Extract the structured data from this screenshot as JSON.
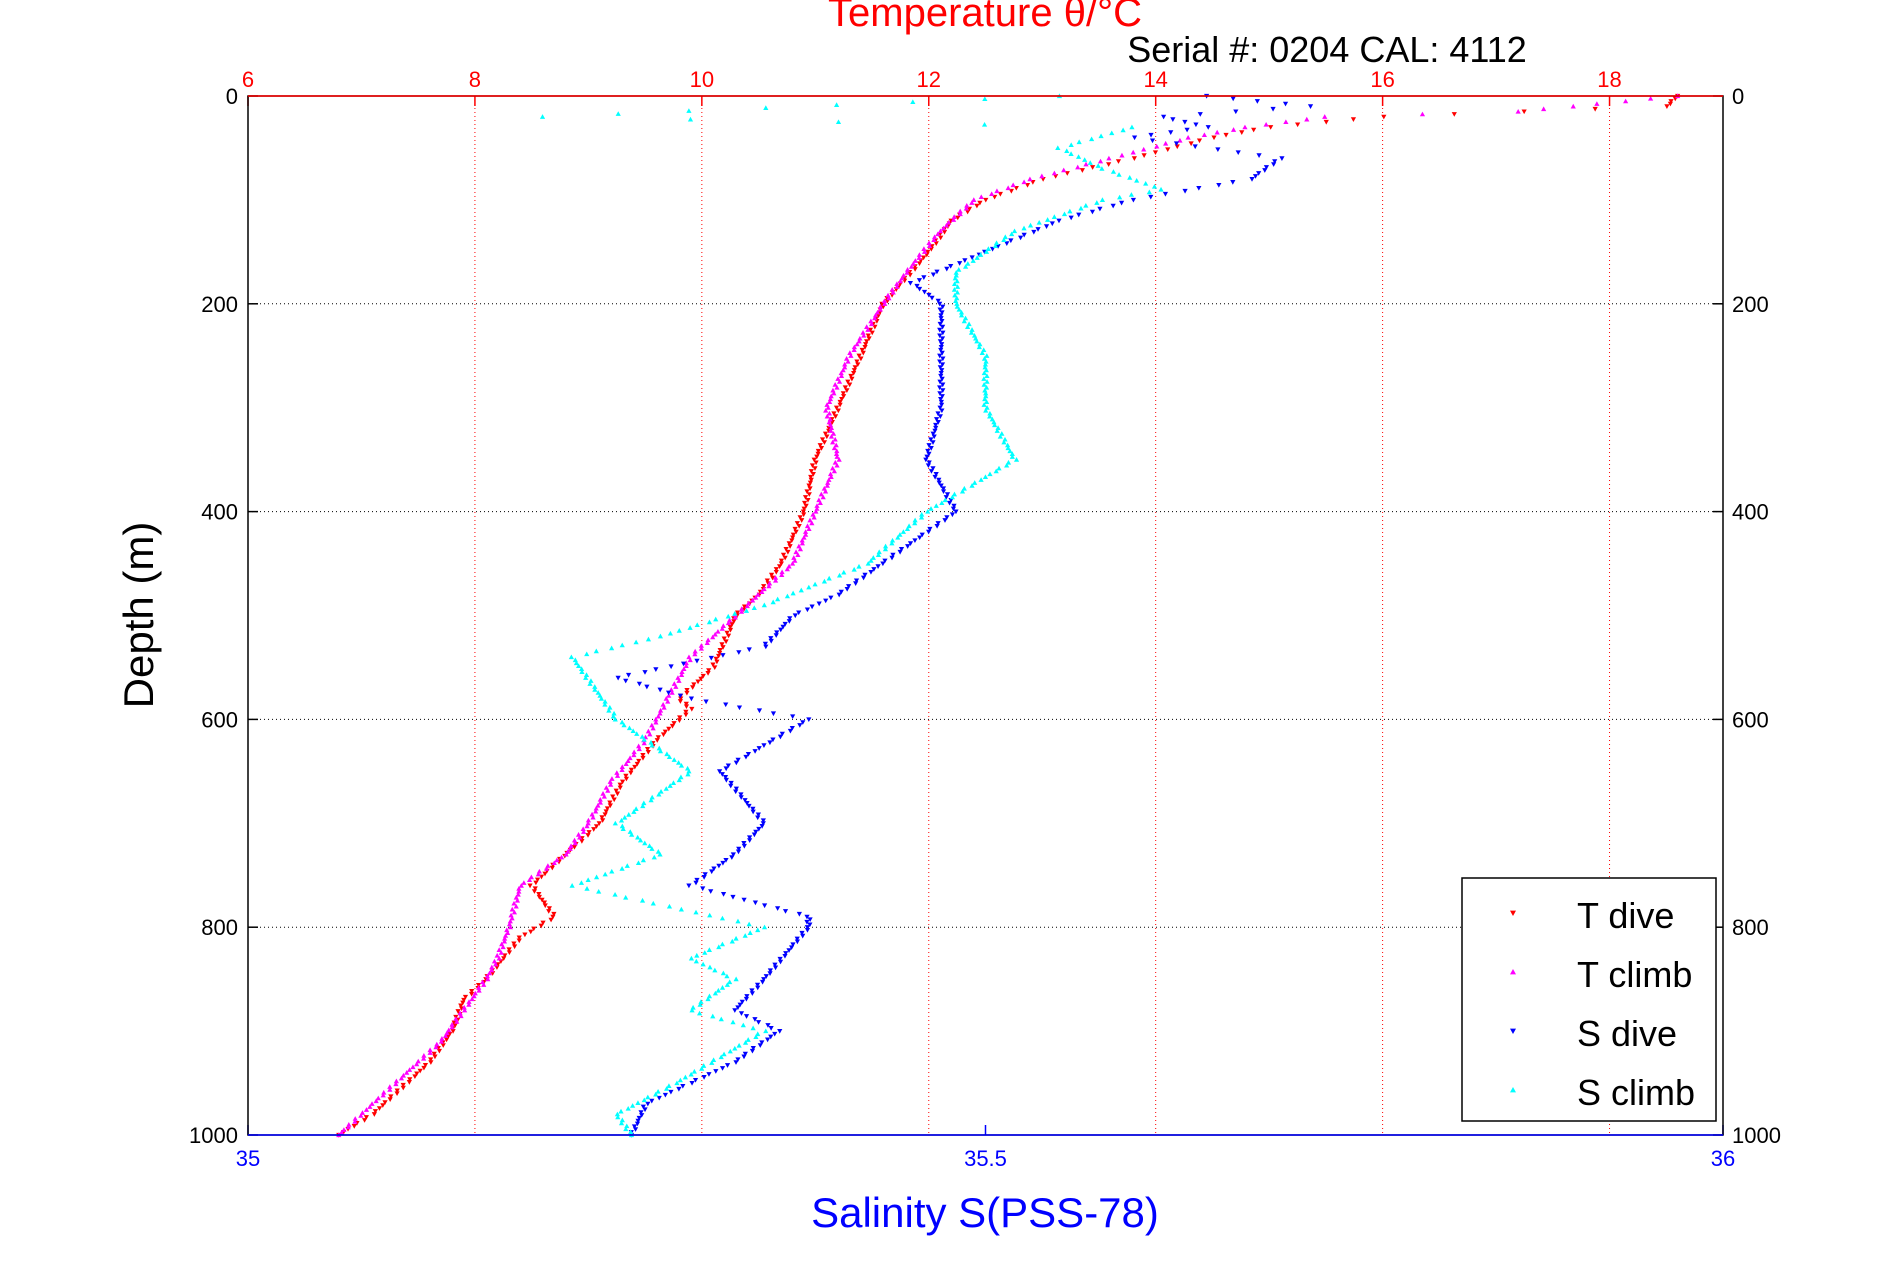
{
  "chart_data": {
    "type": "scatter",
    "title": "Temperature θ/°C",
    "subtitle": "Serial #: 0204  CAL: 4112",
    "ylabel": "Depth (m)",
    "xlabel": "Salinity S(PSS-78)",
    "ylim": [
      1000,
      0
    ],
    "temperature_axis": {
      "range": [
        6,
        19
      ],
      "ticks": [
        6,
        8,
        10,
        12,
        14,
        16,
        18
      ]
    },
    "salinity_axis": {
      "range": [
        35,
        36
      ],
      "ticks": [
        35,
        35.5,
        36
      ],
      "tick_labels": [
        "35",
        "35.5",
        "36"
      ]
    },
    "depth_ticks": [
      0,
      200,
      400,
      600,
      800,
      1000
    ],
    "grid": true,
    "legend_position": "bottom-right",
    "colors": {
      "temperature_axis": "#ff0000",
      "salinity_axis": "#0000ff",
      "t_dive": "#ff0000",
      "t_climb": "#ff00ff",
      "s_dive": "#0000ff",
      "s_climb": "#00ffff"
    },
    "series": [
      {
        "name": "T dive",
        "axis": "temperature",
        "marker": "down-triangle",
        "color": "#ff0000",
        "points": [
          [
            18.6,
            0
          ],
          [
            18.5,
            10
          ],
          [
            16.0,
            20
          ],
          [
            15.0,
            30
          ],
          [
            14.5,
            40
          ],
          [
            13.8,
            60
          ],
          [
            13.0,
            80
          ],
          [
            12.5,
            100
          ],
          [
            12.2,
            120
          ],
          [
            12.0,
            150
          ],
          [
            11.6,
            200
          ],
          [
            11.4,
            250
          ],
          [
            11.2,
            300
          ],
          [
            11.0,
            350
          ],
          [
            10.9,
            400
          ],
          [
            10.7,
            450
          ],
          [
            10.5,
            480
          ],
          [
            10.3,
            500
          ],
          [
            10.1,
            550
          ],
          [
            9.8,
            580
          ],
          [
            9.9,
            590
          ],
          [
            9.6,
            620
          ],
          [
            9.3,
            660
          ],
          [
            9.1,
            700
          ],
          [
            8.9,
            720
          ],
          [
            8.7,
            740
          ],
          [
            8.5,
            760
          ],
          [
            8.7,
            790
          ],
          [
            8.4,
            810
          ],
          [
            8.1,
            850
          ],
          [
            7.9,
            870
          ],
          [
            7.8,
            900
          ],
          [
            7.6,
            930
          ],
          [
            7.3,
            960
          ],
          [
            7.1,
            980
          ],
          [
            6.8,
            1000
          ]
        ]
      },
      {
        "name": "T climb",
        "axis": "temperature",
        "marker": "up-triangle",
        "color": "#ff00ff",
        "points": [
          [
            18.6,
            0
          ],
          [
            17.2,
            15
          ],
          [
            15.5,
            20
          ],
          [
            14.8,
            30
          ],
          [
            14.3,
            40
          ],
          [
            13.6,
            60
          ],
          [
            12.9,
            80
          ],
          [
            12.4,
            100
          ],
          [
            12.1,
            130
          ],
          [
            11.8,
            170
          ],
          [
            11.6,
            200
          ],
          [
            11.3,
            250
          ],
          [
            11.1,
            300
          ],
          [
            11.2,
            350
          ],
          [
            11.0,
            400
          ],
          [
            10.8,
            450
          ],
          [
            10.5,
            480
          ],
          [
            10.2,
            510
          ],
          [
            9.9,
            540
          ],
          [
            9.7,
            580
          ],
          [
            9.5,
            620
          ],
          [
            9.2,
            660
          ],
          [
            9.0,
            700
          ],
          [
            8.8,
            730
          ],
          [
            8.4,
            760
          ],
          [
            8.3,
            800
          ],
          [
            8.2,
            830
          ],
          [
            8.1,
            850
          ],
          [
            7.9,
            880
          ],
          [
            7.7,
            910
          ],
          [
            7.4,
            940
          ],
          [
            7.1,
            970
          ],
          [
            6.9,
            990
          ],
          [
            6.8,
            1000
          ]
        ]
      },
      {
        "name": "S dive",
        "axis": "salinity",
        "marker": "down-triangle",
        "color": "#0000ff",
        "points": [
          [
            35.65,
            0
          ],
          [
            35.72,
            10
          ],
          [
            35.62,
            20
          ],
          [
            35.65,
            30
          ],
          [
            35.6,
            40
          ],
          [
            35.7,
            60
          ],
          [
            35.68,
            80
          ],
          [
            35.6,
            100
          ],
          [
            35.55,
            120
          ],
          [
            35.5,
            150
          ],
          [
            35.45,
            180
          ],
          [
            35.47,
            200
          ],
          [
            35.47,
            250
          ],
          [
            35.47,
            300
          ],
          [
            35.46,
            350
          ],
          [
            35.48,
            400
          ],
          [
            35.43,
            450
          ],
          [
            35.4,
            480
          ],
          [
            35.37,
            500
          ],
          [
            35.35,
            530
          ],
          [
            35.25,
            560
          ],
          [
            35.3,
            580
          ],
          [
            35.38,
            600
          ],
          [
            35.32,
            650
          ],
          [
            35.35,
            700
          ],
          [
            35.33,
            730
          ],
          [
            35.3,
            760
          ],
          [
            35.38,
            790
          ],
          [
            35.38,
            800
          ],
          [
            35.35,
            850
          ],
          [
            35.33,
            880
          ],
          [
            35.36,
            900
          ],
          [
            35.33,
            930
          ],
          [
            35.3,
            950
          ],
          [
            35.27,
            970
          ],
          [
            35.26,
            1000
          ]
        ]
      },
      {
        "name": "S climb",
        "axis": "salinity",
        "marker": "up-triangle",
        "color": "#00ffff",
        "points": [
          [
            35.55,
            0
          ],
          [
            35.2,
            20
          ],
          [
            35.6,
            30
          ],
          [
            35.55,
            50
          ],
          [
            35.58,
            70
          ],
          [
            35.62,
            90
          ],
          [
            35.58,
            100
          ],
          [
            35.52,
            130
          ],
          [
            35.48,
            170
          ],
          [
            35.48,
            200
          ],
          [
            35.5,
            250
          ],
          [
            35.5,
            300
          ],
          [
            35.52,
            350
          ],
          [
            35.46,
            400
          ],
          [
            35.42,
            450
          ],
          [
            35.35,
            490
          ],
          [
            35.28,
            520
          ],
          [
            35.22,
            540
          ],
          [
            35.25,
            600
          ],
          [
            35.3,
            650
          ],
          [
            35.25,
            700
          ],
          [
            35.28,
            730
          ],
          [
            35.22,
            760
          ],
          [
            35.35,
            800
          ],
          [
            35.3,
            830
          ],
          [
            35.33,
            850
          ],
          [
            35.3,
            880
          ],
          [
            35.35,
            900
          ],
          [
            35.29,
            950
          ],
          [
            35.25,
            980
          ],
          [
            35.26,
            1000
          ]
        ]
      }
    ]
  }
}
